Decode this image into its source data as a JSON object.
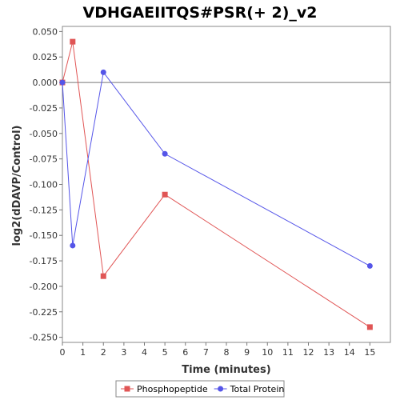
{
  "chart_data": {
    "type": "line",
    "title": "VDHGAEIITQS#PSR(+ 2)_v2",
    "xlabel": "Time (minutes)",
    "ylabel": "log2(dDAVP/Control)",
    "xlim": [
      0,
      16
    ],
    "ylim": [
      -0.255,
      0.055
    ],
    "xticks": [
      0,
      1,
      2,
      3,
      4,
      5,
      6,
      7,
      8,
      9,
      10,
      11,
      12,
      13,
      14,
      15
    ],
    "yticks": [
      0.05,
      0.025,
      0.0,
      -0.025,
      -0.05,
      -0.075,
      -0.1,
      -0.125,
      -0.15,
      -0.175,
      -0.2,
      -0.225,
      -0.25
    ],
    "ytick_labels": [
      "0.050",
      "0.025",
      "0.000",
      "-0.025",
      "-0.050",
      "-0.075",
      "-0.100",
      "-0.125",
      "-0.150",
      "-0.175",
      "-0.200",
      "-0.225",
      "-0.250"
    ],
    "grid": false,
    "zero_line": true,
    "legend_position": "bottom",
    "series": [
      {
        "name": "Phosphopeptide",
        "color": "#e05555",
        "marker": "square",
        "x": [
          0,
          0.5,
          2,
          5,
          15
        ],
        "y": [
          0.0,
          0.04,
          -0.19,
          -0.11,
          -0.24
        ]
      },
      {
        "name": "Total Protein",
        "color": "#5555e8",
        "marker": "circle",
        "x": [
          0,
          0.5,
          2,
          5,
          15
        ],
        "y": [
          0.0,
          -0.16,
          0.01,
          -0.07,
          -0.18
        ]
      }
    ]
  }
}
